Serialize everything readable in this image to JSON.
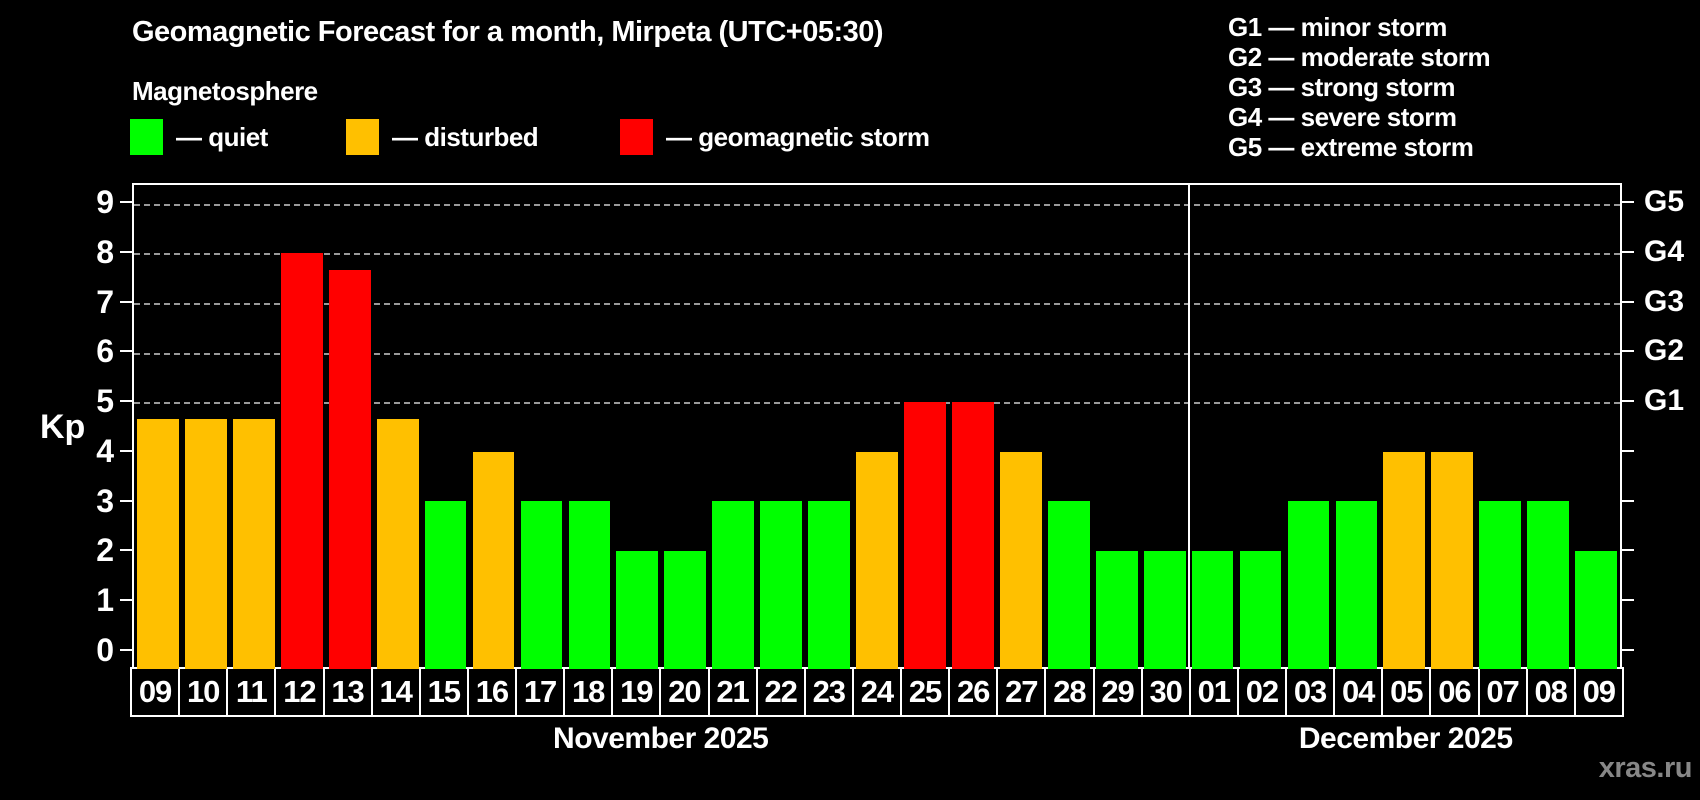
{
  "title": "Geomagnetic Forecast for a month, Mirpeta (UTC+05:30)",
  "subtitle": "Magnetosphere",
  "legend": {
    "items": [
      {
        "status": "quiet",
        "label": "— quiet",
        "color": "#00ff00"
      },
      {
        "status": "disturbed",
        "label": "— disturbed",
        "color": "#ffc000"
      },
      {
        "status": "storm",
        "label": "— geomagnetic storm",
        "color": "#ff0000"
      }
    ]
  },
  "g_scale": [
    {
      "code": "G1",
      "kp": 5,
      "text": "G1 — minor storm"
    },
    {
      "code": "G2",
      "kp": 6,
      "text": "G2 — moderate storm"
    },
    {
      "code": "G3",
      "kp": 7,
      "text": "G3 — strong storm"
    },
    {
      "code": "G4",
      "kp": 8,
      "text": "G4 — severe storm"
    },
    {
      "code": "G5",
      "kp": 9,
      "text": "G5 — extreme storm"
    }
  ],
  "watermark": "xras.ru",
  "colors": {
    "quiet": "#00ff00",
    "disturbed": "#ffc000",
    "storm": "#ff0000",
    "grid": "#9a9a9a",
    "axis": "#ffffff",
    "watermark": "#878787"
  },
  "chart_data": {
    "type": "bar",
    "title": "Geomagnetic Forecast for a month, Mirpeta (UTC+05:30)",
    "xlabel": "",
    "ylabel": "Kp",
    "ylim": [
      0,
      9
    ],
    "yticks": [
      0,
      1,
      2,
      3,
      4,
      5,
      6,
      7,
      8,
      9
    ],
    "grid_levels": [
      5,
      6,
      7,
      8,
      9
    ],
    "grid_style": "dashed gray, only at Kp 5-9 (G1-G5 levels)",
    "legend_position": "top-left",
    "categories": [
      "09",
      "10",
      "11",
      "12",
      "13",
      "14",
      "15",
      "16",
      "17",
      "18",
      "19",
      "20",
      "21",
      "22",
      "23",
      "24",
      "25",
      "26",
      "27",
      "28",
      "29",
      "30",
      "01",
      "02",
      "03",
      "04",
      "05",
      "06",
      "07",
      "08",
      "09"
    ],
    "values": [
      4.67,
      4.67,
      4.67,
      8,
      7.67,
      4.67,
      3,
      4,
      3,
      3,
      2,
      2,
      3,
      3,
      3,
      4,
      5,
      5,
      4,
      3,
      2,
      2,
      2,
      2,
      3,
      3,
      4,
      4,
      3,
      3,
      2
    ],
    "statuses": [
      "disturbed",
      "disturbed",
      "disturbed",
      "storm",
      "storm",
      "disturbed",
      "quiet",
      "disturbed",
      "quiet",
      "quiet",
      "quiet",
      "quiet",
      "quiet",
      "quiet",
      "quiet",
      "disturbed",
      "storm",
      "storm",
      "disturbed",
      "quiet",
      "quiet",
      "quiet",
      "quiet",
      "quiet",
      "quiet",
      "quiet",
      "disturbed",
      "disturbed",
      "quiet",
      "quiet",
      "quiet"
    ],
    "months": [
      {
        "label": "November 2025",
        "days": 22
      },
      {
        "label": "December 2025",
        "days": 9
      }
    ]
  }
}
